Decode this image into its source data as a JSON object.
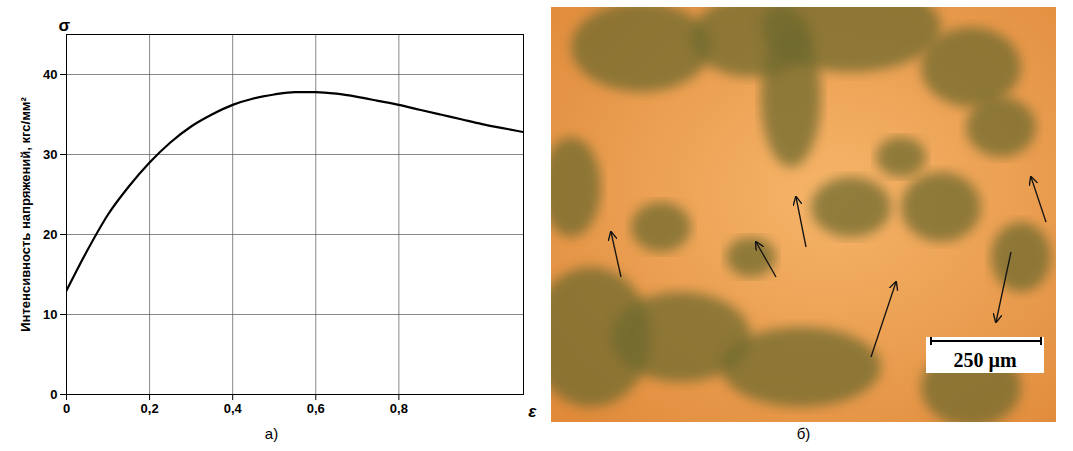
{
  "chart_data": {
    "type": "line",
    "ylabel": "Интенсивность напряжений, кгс/мм²",
    "y_symbol": "σ",
    "xlabel": "ε",
    "caption": "а)",
    "color": "#000000",
    "x": [
      0,
      0.05,
      0.1,
      0.15,
      0.2,
      0.25,
      0.3,
      0.35,
      0.4,
      0.45,
      0.5,
      0.55,
      0.6,
      0.65,
      0.7,
      0.75,
      0.8,
      0.85,
      0.9,
      0.95,
      1.0,
      1.05,
      1.1
    ],
    "values": [
      13,
      18,
      22.5,
      26,
      29,
      31.5,
      33.5,
      35,
      36.2,
      37,
      37.5,
      37.8,
      37.8,
      37.6,
      37.2,
      36.7,
      36.2,
      35.6,
      35,
      34.4,
      33.8,
      33.3,
      32.8
    ],
    "xlim": [
      0,
      1.1
    ],
    "ylim": [
      0,
      45
    ],
    "xticks": [
      0,
      {
        "value": 0.2,
        "label": "0,2"
      },
      {
        "value": 0.4,
        "label": "0,4"
      },
      {
        "value": 0.6,
        "label": "0,6"
      },
      {
        "value": 0.8,
        "label": "0,8"
      }
    ],
    "yticks": [
      0,
      10,
      20,
      30,
      40
    ],
    "grid": true
  },
  "image_panel": {
    "caption": "б)",
    "scale_bar": "250 µm"
  }
}
